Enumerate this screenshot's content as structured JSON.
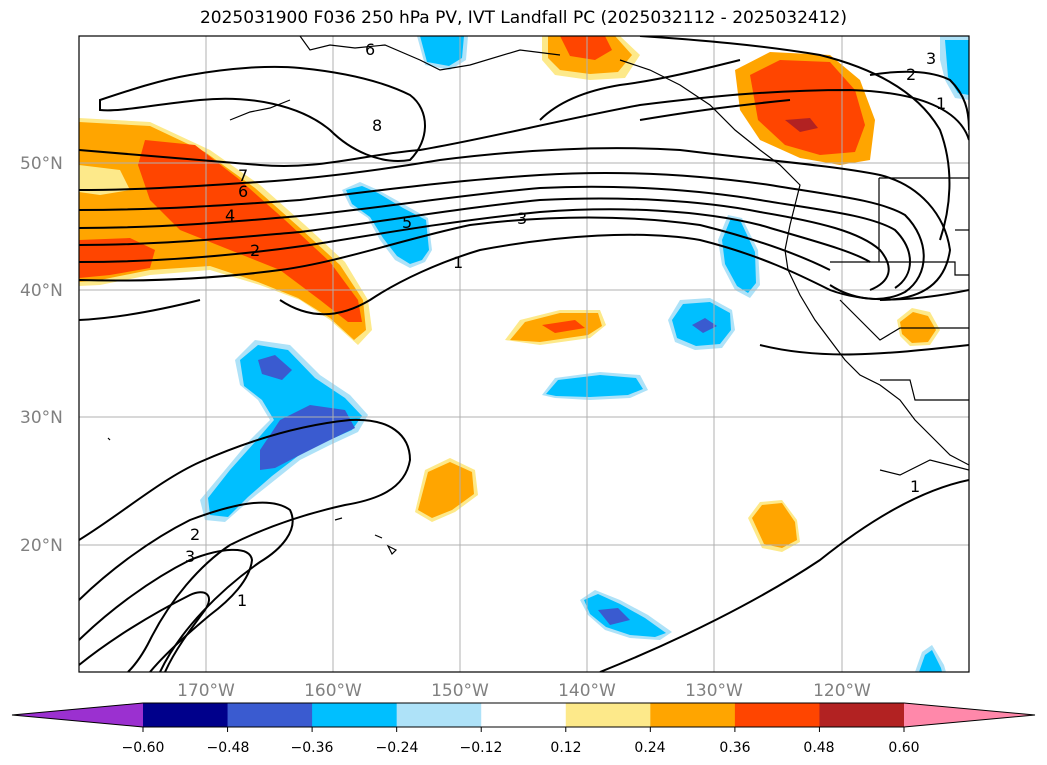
{
  "title": "2025031900 F036 250 hPa PV, IVT Landfall PC (2025032112 - 2025032412)",
  "map": {
    "lon_ticks": [
      "170°W",
      "160°W",
      "150°W",
      "140°W",
      "130°W",
      "120°W"
    ],
    "lat_ticks": [
      "50°N",
      "40°N",
      "30°N",
      "20°N"
    ],
    "contour_labels": [
      "6",
      "8",
      "7",
      "6",
      "4",
      "2",
      "5",
      "3",
      "1",
      "2",
      "3",
      "1",
      "2",
      "3",
      "1",
      "1"
    ]
  },
  "colorbar": {
    "ticks": [
      "−0.60",
      "−0.48",
      "−0.36",
      "−0.24",
      "−0.12",
      "0.12",
      "0.24",
      "0.36",
      "0.48",
      "0.60"
    ],
    "colors": [
      "#9b30d0",
      "#00008b",
      "#3a5bd0",
      "#00bfff",
      "#aee2f8",
      "#ffffff",
      "#fde98a",
      "#ffa500",
      "#ff4500",
      "#b22222",
      "#ff88aa"
    ]
  }
}
